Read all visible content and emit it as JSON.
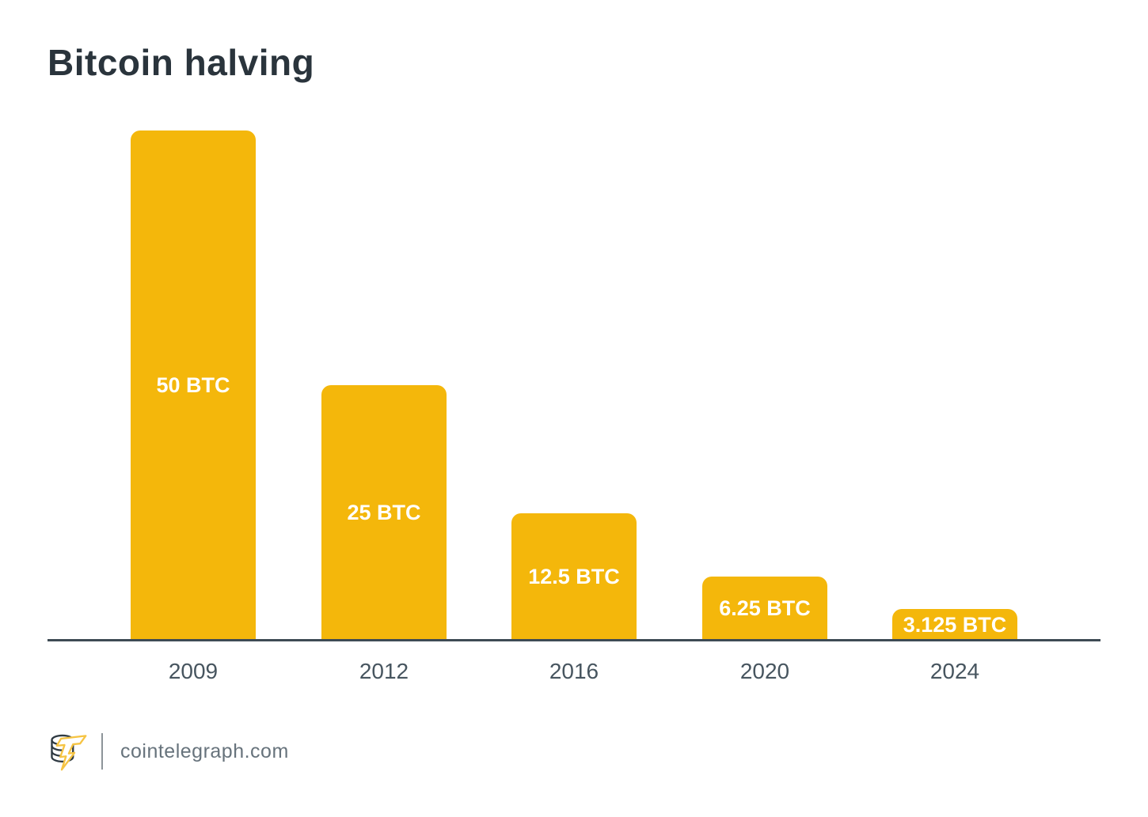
{
  "page": {
    "title": "Bitcoin halving"
  },
  "chart_data": {
    "type": "bar",
    "title": "Bitcoin halving",
    "categories": [
      "2009",
      "2012",
      "2016",
      "2020",
      "2024"
    ],
    "values": [
      50,
      25,
      12.5,
      6.25,
      3.125
    ],
    "bar_labels": [
      "50 BTC",
      "25 BTC",
      "12.5 BTC",
      "6.25 BTC",
      "3.125 BTC"
    ],
    "unit": "BTC",
    "xlabel": "",
    "ylabel": "",
    "ylim": [
      0,
      50
    ],
    "grid": false,
    "legend": false,
    "bar_color": "#F4B70B",
    "bar_label_color": "#FFFFFF",
    "axis_line_color": "#3E4B54",
    "tick_label_color": "#47555F"
  },
  "footer": {
    "site": "cointelegraph.com",
    "logo": "cointelegraph-coin-bolt-logo"
  },
  "colors": {
    "background": "#FFFFFF",
    "title": "#2A343C",
    "footer_text": "#67737C",
    "footer_divider": "#8D9499",
    "logo_coin_outline": "#2F3A42",
    "logo_bolt_yellow": "#F6C443"
  }
}
